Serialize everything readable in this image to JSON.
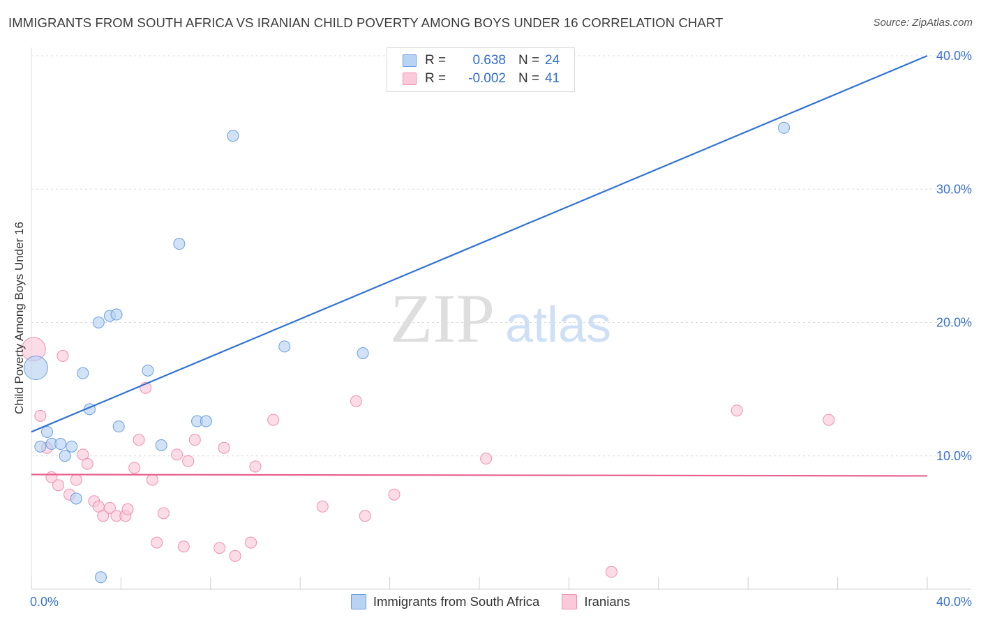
{
  "header": {
    "title": "IMMIGRANTS FROM SOUTH AFRICA VS IRANIAN CHILD POVERTY AMONG BOYS UNDER 16 CORRELATION CHART",
    "source": "Source: ZipAtlas.com"
  },
  "watermark": {
    "zip": "ZIP",
    "atlas": "atlas"
  },
  "legend": {
    "r_label": "R =",
    "n_label": "N =",
    "series1": {
      "r": "0.638",
      "n": "24"
    },
    "series2": {
      "r": "-0.002",
      "n": "41"
    }
  },
  "colors": {
    "blue_fill": "#b9d3f3",
    "blue_stroke": "#6a9de0",
    "blue_line": "#2f73d4",
    "pink_fill": "#fbcada",
    "pink_stroke": "#ee8fb0",
    "pink_line": "#e8628e",
    "tick_label": "#3a72c9"
  },
  "chart_data": {
    "type": "scatter",
    "title": "IMMIGRANTS FROM SOUTH AFRICA VS IRANIAN CHILD POVERTY AMONG BOYS UNDER 16 CORRELATION CHART",
    "xlabel": "",
    "ylabel": "Child Poverty Among Boys Under 16",
    "xlim": [
      0,
      40
    ],
    "ylim": [
      0,
      41.3
    ],
    "x_tick_labels": [
      "0.0%",
      "40.0%"
    ],
    "y_ticks": [
      10,
      20,
      30,
      40
    ],
    "y_tick_labels": [
      "10.0%",
      "20.0%",
      "30.0%",
      "40.0%"
    ],
    "legend_position": "bottom-center",
    "series": [
      {
        "name": "Immigrants from South Africa",
        "color": "blue",
        "r": 0.638,
        "n": 24,
        "trend": {
          "x": [
            0,
            40
          ],
          "y": [
            11.8,
            40.0
          ]
        },
        "points": [
          {
            "x": 0.2,
            "y": 16.6,
            "big": true
          },
          {
            "x": 0.4,
            "y": 10.7
          },
          {
            "x": 0.7,
            "y": 11.8
          },
          {
            "x": 0.9,
            "y": 10.9
          },
          {
            "x": 1.3,
            "y": 10.9
          },
          {
            "x": 1.5,
            "y": 10.0
          },
          {
            "x": 1.8,
            "y": 10.7
          },
          {
            "x": 2.0,
            "y": 6.8
          },
          {
            "x": 2.3,
            "y": 16.2
          },
          {
            "x": 2.6,
            "y": 13.5
          },
          {
            "x": 3.0,
            "y": 20.0
          },
          {
            "x": 3.1,
            "y": 0.9
          },
          {
            "x": 3.5,
            "y": 20.5
          },
          {
            "x": 3.8,
            "y": 20.6
          },
          {
            "x": 3.9,
            "y": 12.2
          },
          {
            "x": 5.2,
            "y": 16.4
          },
          {
            "x": 5.8,
            "y": 10.8
          },
          {
            "x": 6.6,
            "y": 25.9
          },
          {
            "x": 7.4,
            "y": 12.6
          },
          {
            "x": 7.8,
            "y": 12.6
          },
          {
            "x": 9.0,
            "y": 34.0
          },
          {
            "x": 11.3,
            "y": 18.2
          },
          {
            "x": 14.8,
            "y": 17.7
          },
          {
            "x": 33.6,
            "y": 34.6
          }
        ]
      },
      {
        "name": "Iranians",
        "color": "pink",
        "r": -0.002,
        "n": 41,
        "trend": {
          "x": [
            0,
            40
          ],
          "y": [
            8.6,
            8.5
          ]
        },
        "points": [
          {
            "x": 0.1,
            "y": 18.0,
            "big": true
          },
          {
            "x": 0.4,
            "y": 13.0
          },
          {
            "x": 0.7,
            "y": 10.6
          },
          {
            "x": 0.9,
            "y": 8.4
          },
          {
            "x": 1.2,
            "y": 7.8
          },
          {
            "x": 1.4,
            "y": 17.5
          },
          {
            "x": 1.7,
            "y": 7.1
          },
          {
            "x": 2.0,
            "y": 8.2
          },
          {
            "x": 2.3,
            "y": 10.1
          },
          {
            "x": 2.5,
            "y": 9.4
          },
          {
            "x": 2.8,
            "y": 6.6
          },
          {
            "x": 3.0,
            "y": 6.2
          },
          {
            "x": 3.2,
            "y": 5.5
          },
          {
            "x": 3.5,
            "y": 6.1
          },
          {
            "x": 3.8,
            "y": 5.5
          },
          {
            "x": 4.2,
            "y": 5.5
          },
          {
            "x": 4.3,
            "y": 6.0
          },
          {
            "x": 4.6,
            "y": 9.1
          },
          {
            "x": 4.8,
            "y": 11.2
          },
          {
            "x": 5.1,
            "y": 15.1
          },
          {
            "x": 5.4,
            "y": 8.2
          },
          {
            "x": 5.6,
            "y": 3.5
          },
          {
            "x": 5.9,
            "y": 5.7
          },
          {
            "x": 6.5,
            "y": 10.1
          },
          {
            "x": 6.8,
            "y": 3.2
          },
          {
            "x": 7.0,
            "y": 9.6
          },
          {
            "x": 7.3,
            "y": 11.2
          },
          {
            "x": 8.4,
            "y": 3.1
          },
          {
            "x": 8.6,
            "y": 10.6
          },
          {
            "x": 9.1,
            "y": 2.5
          },
          {
            "x": 9.8,
            "y": 3.5
          },
          {
            "x": 10.0,
            "y": 9.2
          },
          {
            "x": 10.8,
            "y": 12.7
          },
          {
            "x": 13.0,
            "y": 6.2
          },
          {
            "x": 14.5,
            "y": 14.1
          },
          {
            "x": 14.9,
            "y": 5.5
          },
          {
            "x": 16.2,
            "y": 7.1
          },
          {
            "x": 20.3,
            "y": 9.8
          },
          {
            "x": 25.9,
            "y": 1.3
          },
          {
            "x": 31.5,
            "y": 13.4
          },
          {
            "x": 35.6,
            "y": 12.7
          }
        ]
      }
    ]
  },
  "bottom_legend": {
    "item1": "Immigrants from South Africa",
    "item2": "Iranians"
  }
}
